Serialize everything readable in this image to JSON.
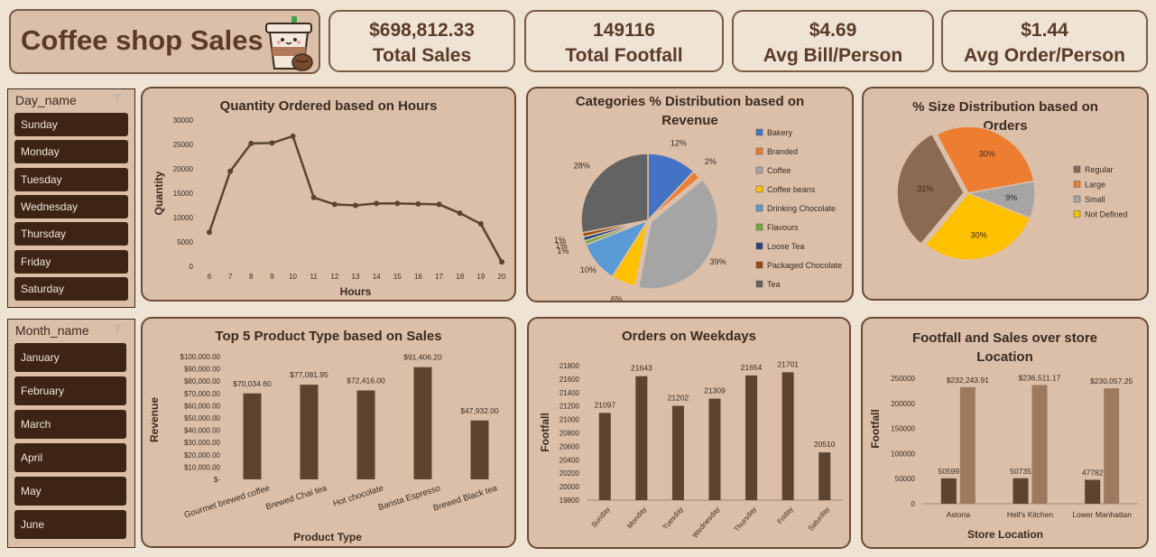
{
  "header": {
    "title": "Coffee shop Sales"
  },
  "kpis": [
    {
      "value": "$698,812.33",
      "label": "Total Sales"
    },
    {
      "value": "149116",
      "label": "Total Footfall"
    },
    {
      "value": "$4.69",
      "label": "Avg Bill/Person"
    },
    {
      "value": "$1.44",
      "label": "Avg Order/Person"
    }
  ],
  "slicers": {
    "day": {
      "header": "Day_name",
      "items": [
        "Sunday",
        "Monday",
        "Tuesday",
        "Wednesday",
        "Thursday",
        "Friday",
        "Saturday"
      ]
    },
    "month": {
      "header": "Month_name",
      "items": [
        "January",
        "February",
        "March",
        "April",
        "May",
        "June"
      ]
    }
  },
  "colors": {
    "bar_dark": "#5c4430",
    "bar_light": "#9c7a60",
    "line": "#5c4430",
    "card_bg": "#dbbfa9",
    "slicer_item": "#3e2414"
  },
  "chart_data": [
    {
      "id": "hours",
      "type": "line",
      "title": "Quantity Ordered based on Hours",
      "xlabel": "Hours",
      "ylabel": "Quantity",
      "x": [
        "6",
        "7",
        "8",
        "9",
        "10",
        "11",
        "12",
        "13",
        "14",
        "15",
        "16",
        "17",
        "18",
        "19",
        "20"
      ],
      "values": [
        7000,
        19500,
        25200,
        25300,
        26700,
        14100,
        12700,
        12500,
        12900,
        12900,
        12800,
        12700,
        10900,
        8700,
        900
      ],
      "ylim": [
        0,
        30000
      ],
      "yticks": [
        "0",
        "5000",
        "10000",
        "15000",
        "20000",
        "25000",
        "30000"
      ]
    },
    {
      "id": "categories",
      "type": "pie",
      "title": "Categories % Distribution based on Revenue",
      "labels": [
        "Bakery",
        "Branded",
        "Coffee",
        "Coffee beans",
        "Drinking Chocolate",
        "Flavours",
        "Loose Tea",
        "Packaged Chocolate",
        "Tea"
      ],
      "values": [
        12,
        2,
        39,
        6,
        10,
        1,
        1,
        1,
        28
      ],
      "data_labels": [
        "12%",
        "2%",
        "39%",
        "6%",
        "10%",
        "1%",
        "1%",
        "1%",
        "28%"
      ],
      "colors": [
        "#4472c4",
        "#ed7d31",
        "#a5a5a5",
        "#ffc000",
        "#5b9bd5",
        "#70ad47",
        "#264478",
        "#9e480e",
        "#636363"
      ],
      "legend": "right"
    },
    {
      "id": "sizes",
      "type": "pie",
      "title": "% Size Distribution based on Orders",
      "labels": [
        "Regular",
        "Large",
        "Small",
        "Not Defined"
      ],
      "values": [
        31,
        30,
        9,
        30
      ],
      "data_labels": [
        "31%",
        "30%",
        "9%",
        "30%"
      ],
      "colors": [
        "#8b6a52",
        "#ed7d31",
        "#a5a5a5",
        "#ffc000"
      ],
      "legend": "right"
    },
    {
      "id": "products",
      "type": "bar",
      "title": "Top 5 Product Type based on Sales",
      "xlabel": "Product Type",
      "ylabel": "Revenue",
      "categories": [
        "Gourmet brewed coffee",
        "Brewed Chai tea",
        "Hot chocolate",
        "Barista Espresso",
        "Brewed Black tea"
      ],
      "values": [
        70034.6,
        77081.95,
        72416,
        91406.2,
        47932
      ],
      "data_labels": [
        "$70,034.60",
        "$77,081.95",
        "$72,416.00",
        "$91,406.20",
        "$47,932.00"
      ],
      "ylim": [
        0,
        100000
      ],
      "yticks": [
        "$-",
        "$10,000.00",
        "$20,000.00",
        "$30,000.00",
        "$40,000.00",
        "$50,000.00",
        "$60,000.00",
        "$70,000.00",
        "$80,000.00",
        "$90,000.00",
        "$100,000.00"
      ]
    },
    {
      "id": "weekdays",
      "type": "bar",
      "title": "Orders on Weekdays",
      "ylabel": "Footfall",
      "categories": [
        "Sunday",
        "Monday",
        "Tuesday",
        "Wednesday",
        "Thursday",
        "Friday",
        "Saturday"
      ],
      "values": [
        21097,
        21643,
        21202,
        21309,
        21654,
        21701,
        20510
      ],
      "data_labels": [
        "21097",
        "21643",
        "21202",
        "21309",
        "21654",
        "21701",
        "20510"
      ],
      "ylim": [
        19800,
        21800
      ],
      "yticks": [
        "19800",
        "20000",
        "20200",
        "20400",
        "20600",
        "20800",
        "21000",
        "21200",
        "21400",
        "21600",
        "21800"
      ]
    },
    {
      "id": "stores",
      "type": "bar",
      "title": "Footfall and Sales over store Location",
      "xlabel": "Store Location",
      "ylabel": "Footfall",
      "categories": [
        "Astoria",
        "Hell's Kitchen",
        "Lower Manhattan"
      ],
      "series": [
        {
          "values": [
            50599,
            50735,
            47782
          ],
          "data_labels": [
            "50599",
            "50735",
            "47782"
          ]
        },
        {
          "values": [
            232243.91,
            236511.17,
            230057.25
          ],
          "data_labels": [
            "$232,243.91",
            "$236,511.17",
            "$230,057.25"
          ]
        }
      ],
      "ylim": [
        0,
        250000
      ],
      "yticks": [
        "0",
        "50000",
        "100000",
        "150000",
        "200000",
        "250000"
      ]
    }
  ]
}
